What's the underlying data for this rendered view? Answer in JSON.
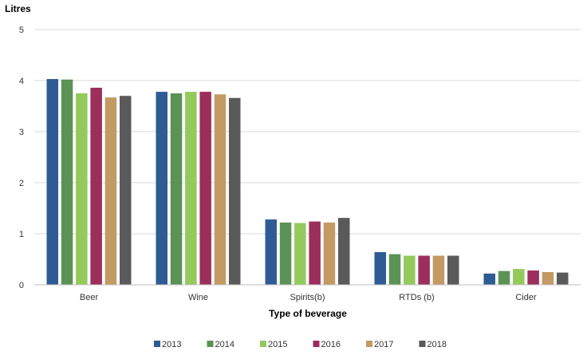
{
  "chart_data": {
    "type": "bar",
    "ylabel": "Litres",
    "xlabel": "Type of beverage",
    "categories": [
      "Beer",
      "Wine",
      "Spirits(b)",
      "RTDs (b)",
      "Cider"
    ],
    "ylim": [
      0,
      5
    ],
    "yticks": [
      0,
      1,
      2,
      3,
      4,
      5
    ],
    "grid": true,
    "legend_position": "bottom",
    "series": [
      {
        "name": "2013",
        "color": "#2e5b94",
        "values": [
          4.03,
          3.78,
          1.28,
          0.64,
          0.22
        ]
      },
      {
        "name": "2014",
        "color": "#5b9256",
        "values": [
          4.02,
          3.75,
          1.22,
          0.6,
          0.27
        ]
      },
      {
        "name": "2015",
        "color": "#94c95c",
        "values": [
          3.75,
          3.78,
          1.21,
          0.57,
          0.31
        ]
      },
      {
        "name": "2016",
        "color": "#9c2e5c",
        "values": [
          3.86,
          3.78,
          1.24,
          0.57,
          0.28
        ]
      },
      {
        "name": "2017",
        "color": "#c39a63",
        "values": [
          3.67,
          3.73,
          1.22,
          0.57,
          0.25
        ]
      },
      {
        "name": "2018",
        "color": "#5a5a5a",
        "values": [
          3.7,
          3.66,
          1.31,
          0.57,
          0.24
        ]
      }
    ]
  }
}
